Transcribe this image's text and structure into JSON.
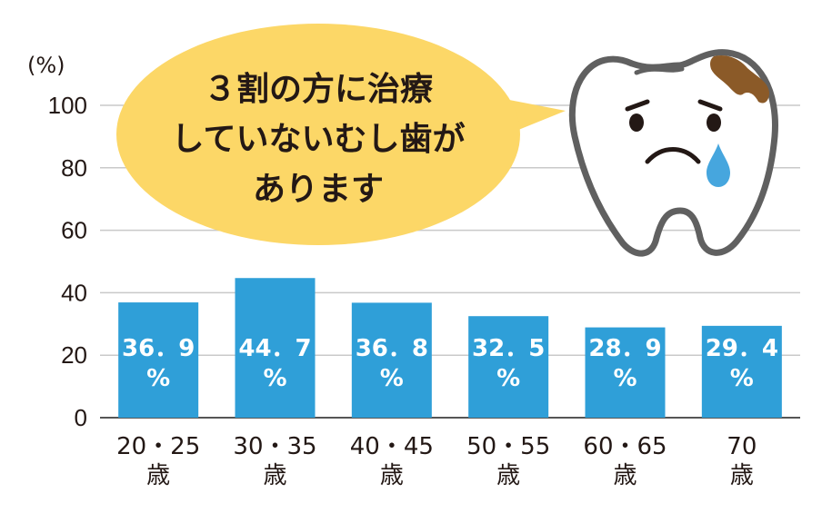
{
  "chart_data": {
    "type": "bar",
    "ylabel": "(%)",
    "ylim": [
      0,
      100
    ],
    "yticks": [
      "0",
      "20",
      "40",
      "60",
      "80",
      "100"
    ],
    "grid": true,
    "categories": [
      [
        "20・25",
        "歳"
      ],
      [
        "30・35",
        "歳"
      ],
      [
        "40・45",
        "歳"
      ],
      [
        "50・55",
        "歳"
      ],
      [
        "60・65",
        "歳"
      ],
      [
        "70",
        "歳"
      ]
    ],
    "values": [
      36.9,
      44.7,
      36.8,
      32.5,
      28.9,
      29.4
    ],
    "data_labels": [
      [
        "36．9",
        "%"
      ],
      [
        "44．7",
        "%"
      ],
      [
        "36．8",
        "%"
      ],
      [
        "32．5",
        "%"
      ],
      [
        "28．9",
        "%"
      ],
      [
        "29．4",
        "%"
      ]
    ],
    "bar_color": "#2f9fd8",
    "grid_color": "#c9c9c9",
    "annotation": {
      "lines": [
        "３割の方に治療",
        "していないむし歯が",
        "あります"
      ],
      "bubble_color": "#fcd767"
    }
  },
  "illustration": {
    "icon": "sad-tooth-icon",
    "tooth_fill": "#ffffff",
    "outline_color": "#606060",
    "decay_color": "#8b5a28",
    "tear_color": "#46a6de"
  }
}
